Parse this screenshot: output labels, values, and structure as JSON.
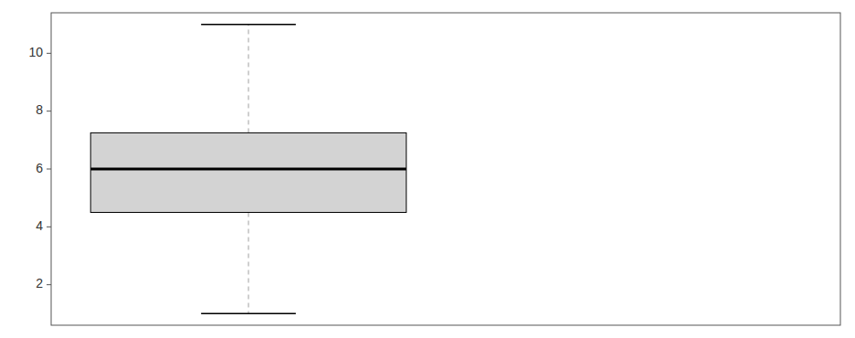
{
  "chart_data": {
    "type": "box",
    "q1": 4.5,
    "median": 6.0,
    "q3": 7.25,
    "whisker_low": 1.0,
    "whisker_high": 11.0,
    "color": "#d3d3d3",
    "ylim": [
      0.6,
      11.4
    ],
    "yticks": [
      2,
      4,
      6,
      8,
      10
    ],
    "grid": false,
    "tick_labels": "y"
  }
}
